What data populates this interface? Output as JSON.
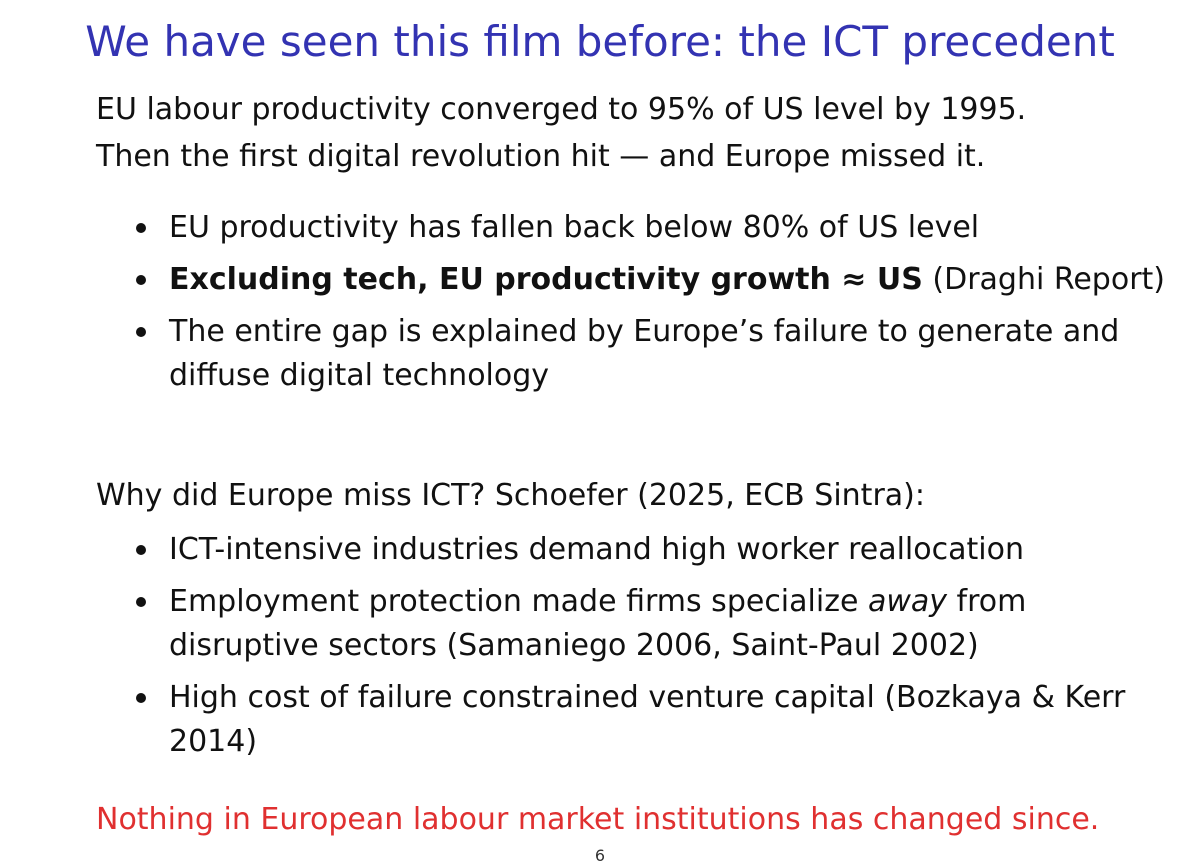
{
  "slide": {
    "title": "We have seen this film before: the ICT precedent",
    "intro_line1": "EU labour productivity converged to 95% of US level by 1995.",
    "intro_line2": "Then the first digital revolution hit — and Europe missed it.",
    "bullets1": [
      {
        "text": "EU productivity has fallen back below 80% of US level"
      },
      {
        "bold": "Excluding tech, EU productivity growth ≈ US",
        "rest": " (Draghi Report)"
      },
      {
        "text": "The entire gap is explained by Europe’s failure to generate and diffuse digital technology"
      }
    ],
    "question": "Why did Europe miss ICT? Schoefer (2025, ECB Sintra):",
    "bullets2": [
      {
        "text": "ICT-intensive industries demand high worker reallocation"
      },
      {
        "pre": "Employment protection made firms specialize ",
        "italic": "away",
        "post": " from disruptive sectors (Samaniego 2006, Saint-Paul 2002)"
      },
      {
        "text": "High cost of failure constrained venture capital (Bozkaya & Kerr 2014)"
      }
    ],
    "conclusion": "Nothing in European labour market institutions has changed since.",
    "page_number": "6"
  },
  "colors": {
    "title": "#3333b2",
    "body_text": "#111111",
    "conclusion": "#e03030"
  }
}
